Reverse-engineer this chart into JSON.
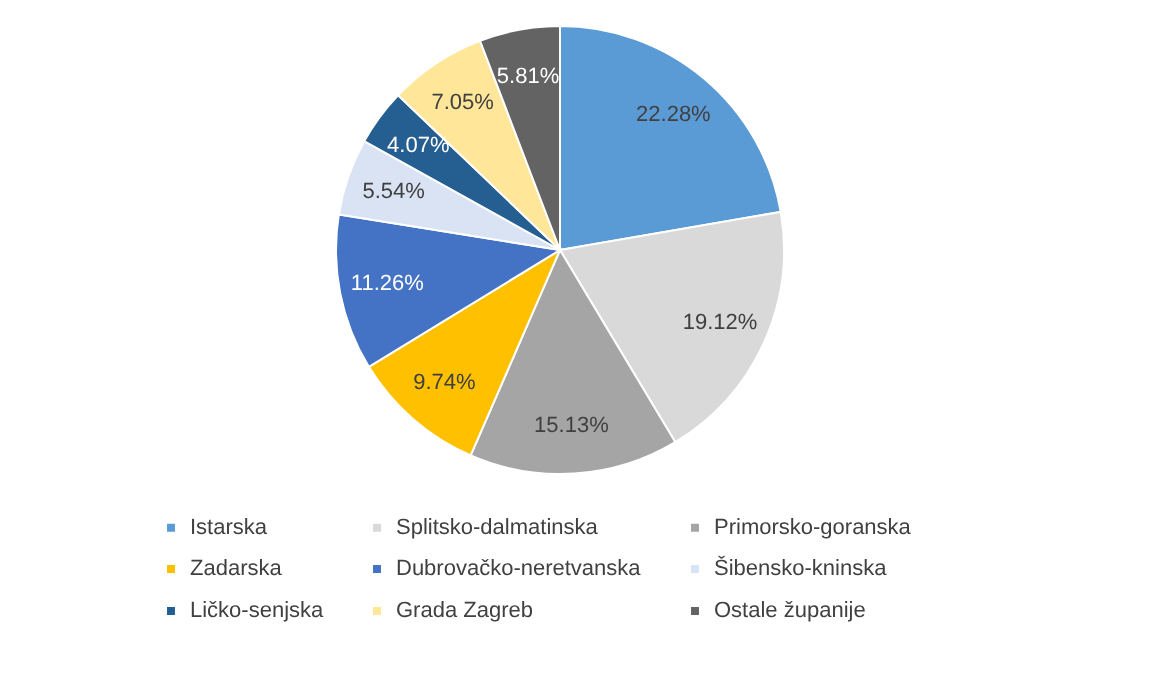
{
  "chart_data": {
    "type": "pie",
    "categories": [
      "Istarska",
      "Splitsko-dalmatinska",
      "Primorsko-goranska",
      "Zadarska",
      "Dubrovačko-neretvanska",
      "Šibensko-kninska",
      "Ličko-senjska",
      "Grada Zagreb",
      "Ostale županije"
    ],
    "values": [
      22.28,
      19.12,
      15.13,
      9.74,
      11.26,
      5.54,
      4.07,
      7.05,
      5.81
    ],
    "value_labels": [
      "22.28%",
      "19.12%",
      "15.13%",
      "9.74%",
      "11.26%",
      "5.54%",
      "4.07%",
      "7.05%",
      "5.81%"
    ],
    "colors": [
      "#5b9bd5",
      "#d9d9d9",
      "#a5a5a5",
      "#ffc000",
      "#4472c4",
      "#dae3f3",
      "#255e91",
      "#ffe699",
      "#636363"
    ],
    "legend": "bottom"
  }
}
